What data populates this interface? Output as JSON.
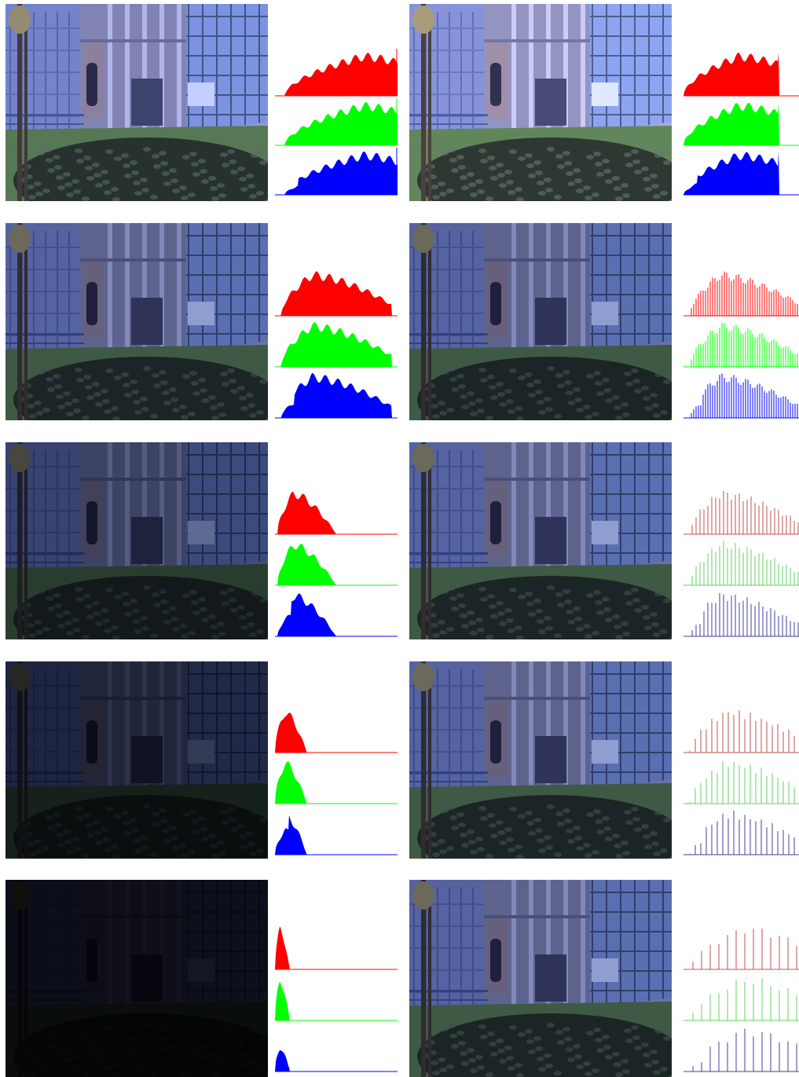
{
  "colors": {
    "red": "#ff0000",
    "green": "#00ff00",
    "blue": "#0000ff",
    "red_light": "#c05050",
    "green_light": "#60d060",
    "blue_light": "#4040a0"
  },
  "panels": [
    {
      "id": "row1-left",
      "brightness": 1.05,
      "contrast": 0.9,
      "tint": [
        210,
        215,
        255
      ],
      "hist": {
        "style": "solid",
        "start": 0.08,
        "peak": 0.72,
        "end": 1.0,
        "spread": 0.9,
        "lightness": "bright"
      }
    },
    {
      "id": "row1-right",
      "brightness": 1.15,
      "contrast": 0.75,
      "tint": [
        220,
        220,
        250
      ],
      "hist": {
        "style": "solid",
        "start": 0.0,
        "peak": 0.45,
        "end": 0.78,
        "spread": 0.9,
        "lightness": "clipped"
      }
    },
    {
      "id": "row2-left",
      "brightness": 0.85,
      "contrast": 1.0,
      "tint": [
        190,
        200,
        250
      ],
      "hist": {
        "style": "solid",
        "start": 0.05,
        "peak": 0.3,
        "end": 0.95,
        "spread": 0.8,
        "lightness": "mid"
      }
    },
    {
      "id": "row2-right",
      "brightness": 0.85,
      "contrast": 1.1,
      "tint": [
        190,
        200,
        250
      ],
      "hist": {
        "style": "lines",
        "start": 0.05,
        "peak": 0.3,
        "end": 1.0,
        "spread": 0.8,
        "lightness": "mid",
        "gap": 3
      }
    },
    {
      "id": "row3-left",
      "brightness": 0.62,
      "contrast": 1.0,
      "tint": [
        170,
        185,
        240
      ],
      "hist": {
        "style": "solid",
        "start": 0.02,
        "peak": 0.15,
        "end": 0.95,
        "spread": 0.35,
        "lightness": "dark"
      }
    },
    {
      "id": "row3-right",
      "brightness": 0.85,
      "contrast": 1.1,
      "tint": [
        190,
        200,
        250
      ],
      "hist": {
        "style": "lines",
        "start": 0.05,
        "peak": 0.3,
        "end": 1.0,
        "spread": 0.8,
        "lightness": "mid",
        "gap": 5,
        "light": true
      }
    },
    {
      "id": "row4-left",
      "brightness": 0.38,
      "contrast": 1.0,
      "tint": [
        150,
        165,
        225
      ],
      "hist": {
        "style": "solid",
        "start": 0.0,
        "peak": 0.08,
        "end": 0.95,
        "spread": 0.18,
        "lightness": "dark"
      }
    },
    {
      "id": "row4-right",
      "brightness": 0.85,
      "contrast": 1.1,
      "tint": [
        190,
        200,
        250
      ],
      "hist": {
        "style": "lines",
        "start": 0.05,
        "peak": 0.35,
        "end": 1.0,
        "spread": 0.8,
        "lightness": "mid",
        "gap": 7,
        "light": true
      }
    },
    {
      "id": "row5-left",
      "brightness": 0.17,
      "contrast": 1.0,
      "tint": [
        130,
        140,
        200
      ],
      "hist": {
        "style": "solid",
        "start": 0.0,
        "peak": 0.04,
        "end": 0.95,
        "spread": 0.08,
        "lightness": "dark"
      }
    },
    {
      "id": "row5-right",
      "brightness": 0.85,
      "contrast": 1.1,
      "tint": [
        190,
        200,
        250
      ],
      "hist": {
        "style": "lines",
        "start": 0.05,
        "peak": 0.5,
        "end": 1.0,
        "spread": 0.8,
        "lightness": "mid",
        "gap": 11,
        "light": true
      }
    }
  ]
}
